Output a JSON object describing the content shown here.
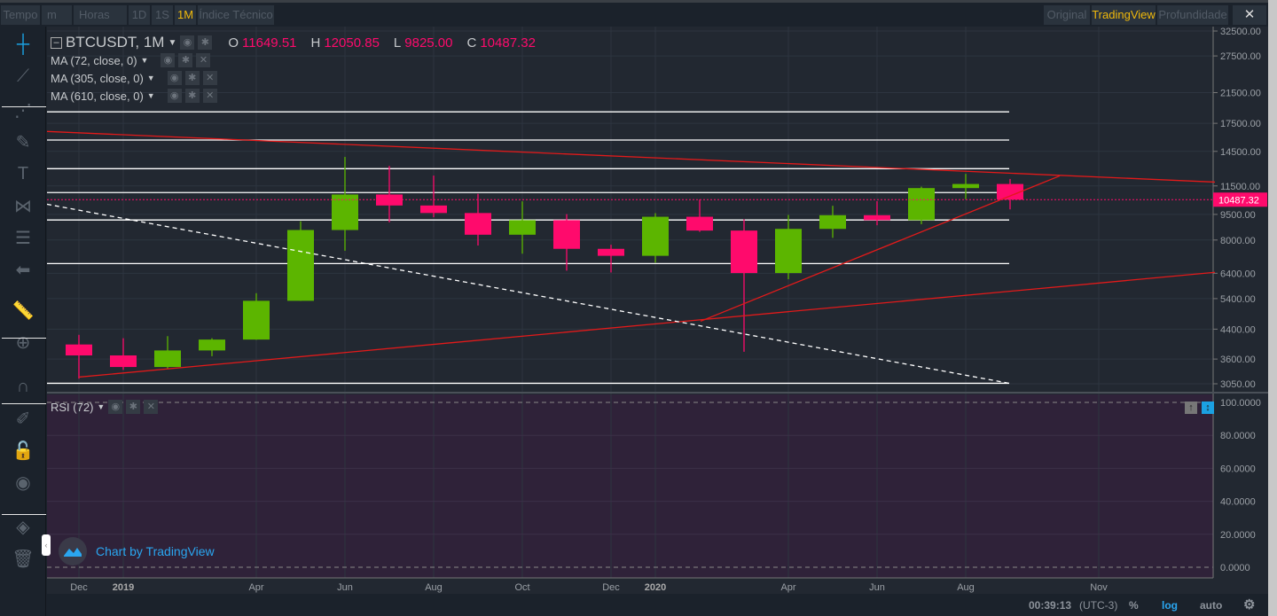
{
  "topbar": {
    "left": [
      "Tempo",
      "m",
      "Horas",
      "1D",
      "1S",
      "1M",
      "Índice Técnico"
    ],
    "active": "1M",
    "right": [
      "Original",
      "TradingView",
      "Profundidade"
    ],
    "active_right": "TradingView",
    "fullscreen_icon": "collapse-icon"
  },
  "legend": {
    "symbol": "BTCUSDT, 1M",
    "o_label": "O",
    "o": "11649.51",
    "h_label": "H",
    "h": "12050.85",
    "l_label": "L",
    "l": "9825.00",
    "c_label": "C",
    "c": "10487.32",
    "indicators": [
      "MA (72, close, 0)",
      "MA (305, close, 0)",
      "MA (610, close, 0)"
    ],
    "rsi": "RSI (72)"
  },
  "left_tools": [
    "crosshair-icon",
    "trend-line-icon",
    "pitchfork-icon",
    "brush-icon",
    "text-icon",
    "pattern-icon",
    "fib-icon",
    "back-arrow-icon",
    "ruler-icon",
    "zoom-in-icon",
    "magnet-icon",
    "lock-drawing-icon",
    "lock-icon",
    "eye-icon",
    "layers-icon",
    "trash-icon"
  ],
  "colors": {
    "up": "#5cb500",
    "down": "#ff0a6c",
    "bg": "#222831",
    "rsi_bg": "#2f2239",
    "trend": "#e21a1a"
  },
  "chart_data": {
    "type": "candlestick",
    "scale": "log",
    "ylim": [
      3050,
      32500
    ],
    "price_ticks": [
      "32500.00",
      "27500.00",
      "21500.00",
      "17500.00",
      "14500.00",
      "11500.00",
      "9500.00",
      "8000.00",
      "6400.00",
      "5400.00",
      "4400.00",
      "3600.00",
      "3050.00"
    ],
    "current_price": "10487.32",
    "x_labels": [
      {
        "i": 0,
        "t": "Dec",
        "bold": false
      },
      {
        "i": 1,
        "t": "2019",
        "bold": true
      },
      {
        "i": 4,
        "t": "Apr",
        "bold": false
      },
      {
        "i": 6,
        "t": "Jun",
        "bold": false
      },
      {
        "i": 8,
        "t": "Aug",
        "bold": false
      },
      {
        "i": 10,
        "t": "Oct",
        "bold": false
      },
      {
        "i": 12,
        "t": "Dec",
        "bold": false
      },
      {
        "i": 13,
        "t": "2020",
        "bold": true
      },
      {
        "i": 16,
        "t": "Apr",
        "bold": false
      },
      {
        "i": 18,
        "t": "Jun",
        "bold": false
      },
      {
        "i": 20,
        "t": "Aug",
        "bold": false
      },
      {
        "i": 23,
        "t": "Nov",
        "bold": false
      }
    ],
    "candles": [
      [
        3970,
        4236,
        3156,
        3689
      ],
      [
        3689,
        4140,
        3349,
        3413
      ],
      [
        3413,
        4198,
        3373,
        3814
      ],
      [
        3814,
        4140,
        3670,
        4103
      ],
      [
        4103,
        5600,
        4097,
        5321
      ],
      [
        5321,
        9074,
        5316,
        8555
      ],
      [
        8555,
        13970,
        7444,
        10855
      ],
      [
        10855,
        13147,
        9010,
        10085
      ],
      [
        10085,
        12325,
        9320,
        9588
      ],
      [
        9588,
        10905,
        7710,
        8289
      ],
      [
        8289,
        10370,
        7300,
        9140
      ],
      [
        9140,
        9516,
        6515,
        7541
      ],
      [
        7541,
        7750,
        6435,
        7195
      ],
      [
        7195,
        9578,
        6871,
        9350
      ],
      [
        9350,
        10500,
        8450,
        8523
      ],
      [
        8523,
        9188,
        3782,
        6410
      ],
      [
        6410,
        9467,
        6150,
        8620
      ],
      [
        8620,
        10067,
        8117,
        9448
      ],
      [
        9448,
        10380,
        8833,
        9138
      ],
      [
        9138,
        11444,
        8893,
        11335
      ],
      [
        11335,
        12468,
        10518,
        11649
      ],
      [
        11649,
        12050,
        9825,
        10487
      ]
    ],
    "horizontal_levels": [
      18900,
      15640,
      12910,
      11000,
      9150,
      6830,
      3060
    ],
    "trendlines": [
      {
        "from": [
          -0.72,
          16570
        ],
        "to": [
          25.62,
          11800
        ],
        "style": "solid",
        "color": "#e21a1a"
      },
      {
        "from": [
          0,
          3190
        ],
        "to": [
          25.62,
          6440
        ],
        "style": "solid",
        "color": "#e21a1a"
      },
      {
        "from": [
          14.02,
          4640
        ],
        "to": [
          22.12,
          12300
        ],
        "style": "solid",
        "color": "#e21a1a"
      },
      {
        "from": [
          -0.72,
          10170
        ],
        "to": [
          20.98,
          3060
        ],
        "style": "dashed",
        "color": "#ffffff"
      }
    ],
    "rsi_ticks": [
      "100.0000",
      "80.0000",
      "60.0000",
      "40.0000",
      "20.0000",
      "0.0000"
    ]
  },
  "watermark": "Chart by TradingView",
  "bottom": {
    "time": "00:39:13",
    "tz": "(UTC-3)",
    "percent": "%",
    "log": "log",
    "auto": "auto"
  }
}
